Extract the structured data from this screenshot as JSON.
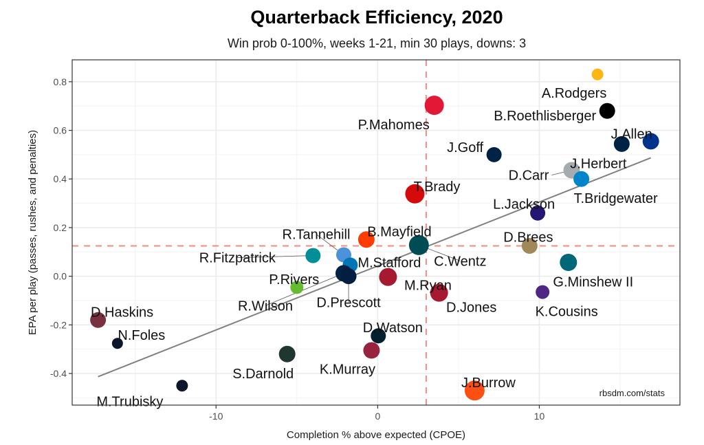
{
  "chart_data": {
    "type": "scatter",
    "title": "Quarterback Efficiency, 2020",
    "subtitle": "Win prob 0-100%, weeks 1-21, min 30 plays, downs: 3",
    "xlabel": "Completion % above expected (CPOE)",
    "ylabel": "EPA per play (passes, rushes, and penalties)",
    "caption": "rbsdm.com/stats",
    "xlim": [
      -18.9,
      18.7
    ],
    "ylim": [
      -0.53,
      0.89
    ],
    "x_ticks": [
      {
        "value": -10,
        "label": "-10"
      },
      {
        "value": 0,
        "label": "0"
      },
      {
        "value": 10,
        "label": "10"
      }
    ],
    "y_ticks": [
      {
        "value": -0.4,
        "label": "-0.4"
      },
      {
        "value": -0.2,
        "label": "-0.2"
      },
      {
        "value": 0.0,
        "label": "0.0"
      },
      {
        "value": 0.2,
        "label": "0.2"
      },
      {
        "value": 0.4,
        "label": "0.4"
      },
      {
        "value": 0.6,
        "label": "0.6"
      },
      {
        "value": 0.8,
        "label": "0.8"
      }
    ],
    "x_minor_grid": [
      -15,
      -5,
      5,
      15
    ],
    "y_minor_grid": [
      -0.5,
      -0.3,
      -0.1,
      0.1,
      0.3,
      0.5,
      0.7
    ],
    "grid": true,
    "reference_lines": {
      "x_mean": 3.0,
      "y_mean": 0.125,
      "color": "#f28b82",
      "style": "dashed"
    },
    "trend_line": {
      "x": [
        -17.3,
        16.9
      ],
      "y": [
        -0.413,
        0.487
      ],
      "color": "#808080"
    },
    "points": [
      {
        "name": "A.Rodgers",
        "x": 13.6,
        "y": 0.83,
        "weight": 0.25,
        "color": "#FFB612"
      },
      {
        "name": "B.Roethlisberger",
        "x": 14.2,
        "y": 0.68,
        "weight": 0.55,
        "color": "#000000"
      },
      {
        "name": "J.Allen",
        "x": 16.9,
        "y": 0.555,
        "weight": 0.6,
        "color": "#00338D"
      },
      {
        "name": "J.Herbert",
        "x": 15.1,
        "y": 0.544,
        "weight": 0.55,
        "color": "#002244"
      },
      {
        "name": "P.Mahomes",
        "x": 3.5,
        "y": 0.703,
        "weight": 0.8,
        "color": "#E31837"
      },
      {
        "name": "J.Goff",
        "x": 7.2,
        "y": 0.5,
        "weight": 0.5,
        "color": "#002244"
      },
      {
        "name": "D.Carr",
        "x": 12.0,
        "y": 0.436,
        "weight": 0.6,
        "color": "#A5ACAF"
      },
      {
        "name": "T.Bridgewater",
        "x": 12.6,
        "y": 0.4,
        "weight": 0.55,
        "color": "#0085CA"
      },
      {
        "name": "T.Brady",
        "x": 2.3,
        "y": 0.339,
        "weight": 0.8,
        "color": "#D50A0A"
      },
      {
        "name": "L.Jackson",
        "x": 9.9,
        "y": 0.26,
        "weight": 0.5,
        "color": "#241773"
      },
      {
        "name": "D.Brees",
        "x": 9.4,
        "y": 0.125,
        "weight": 0.55,
        "color": "#9F8958"
      },
      {
        "name": "B.Mayfield",
        "x": -0.7,
        "y": 0.151,
        "weight": 0.6,
        "color": "#FF3C00"
      },
      {
        "name": "C.Wentz",
        "x": 2.55,
        "y": 0.128,
        "weight": 0.85,
        "color": "#004C54"
      },
      {
        "name": "R.Tannehill",
        "x": -2.1,
        "y": 0.088,
        "weight": 0.5,
        "color": "#4B92DB"
      },
      {
        "name": "R.Fitzpatrick",
        "x": -4.0,
        "y": 0.085,
        "weight": 0.5,
        "color": "#008E97"
      },
      {
        "name": "M.Stafford",
        "x": -1.7,
        "y": 0.046,
        "weight": 0.5,
        "color": "#0076B6"
      },
      {
        "name": "R.Wilson",
        "x": -2.1,
        "y": 0.012,
        "weight": 0.6,
        "color": "#002244"
      },
      {
        "name": "D.Prescott",
        "x": -1.8,
        "y": 0.0,
        "weight": 0.55,
        "color": "#041E42"
      },
      {
        "name": "P.Rivers",
        "x": -5.0,
        "y": -0.046,
        "weight": 0.35,
        "color": "#65BC2E"
      },
      {
        "name": "M.Ryan",
        "x": 0.64,
        "y": -0.003,
        "weight": 0.7,
        "color": "#A71930"
      },
      {
        "name": "D.Jones",
        "x": 3.8,
        "y": -0.068,
        "weight": 0.7,
        "color": "#A71930"
      },
      {
        "name": "G.Minshew II",
        "x": 11.8,
        "y": 0.057,
        "weight": 0.65,
        "color": "#006778"
      },
      {
        "name": "K.Cousins",
        "x": 10.2,
        "y": -0.065,
        "weight": 0.4,
        "color": "#4F2683"
      },
      {
        "name": "D.Haskins",
        "x": -17.3,
        "y": -0.18,
        "weight": 0.55,
        "color": "#773141"
      },
      {
        "name": "N.Foles",
        "x": -16.1,
        "y": -0.276,
        "weight": 0.2,
        "color": "#0B162A"
      },
      {
        "name": "M.Trubisky",
        "x": -12.1,
        "y": -0.45,
        "weight": 0.25,
        "color": "#0B162A"
      },
      {
        "name": "S.Darnold",
        "x": -5.6,
        "y": -0.32,
        "weight": 0.6,
        "color": "#203731"
      },
      {
        "name": "D.Watson",
        "x": 0.04,
        "y": -0.245,
        "weight": 0.5,
        "color": "#03202F"
      },
      {
        "name": "K.Murray",
        "x": -0.38,
        "y": -0.305,
        "weight": 0.6,
        "color": "#97233F"
      },
      {
        "name": "J.Burrow",
        "x": 6.0,
        "y": -0.47,
        "weight": 0.85,
        "color": "#FB4F14"
      }
    ]
  }
}
